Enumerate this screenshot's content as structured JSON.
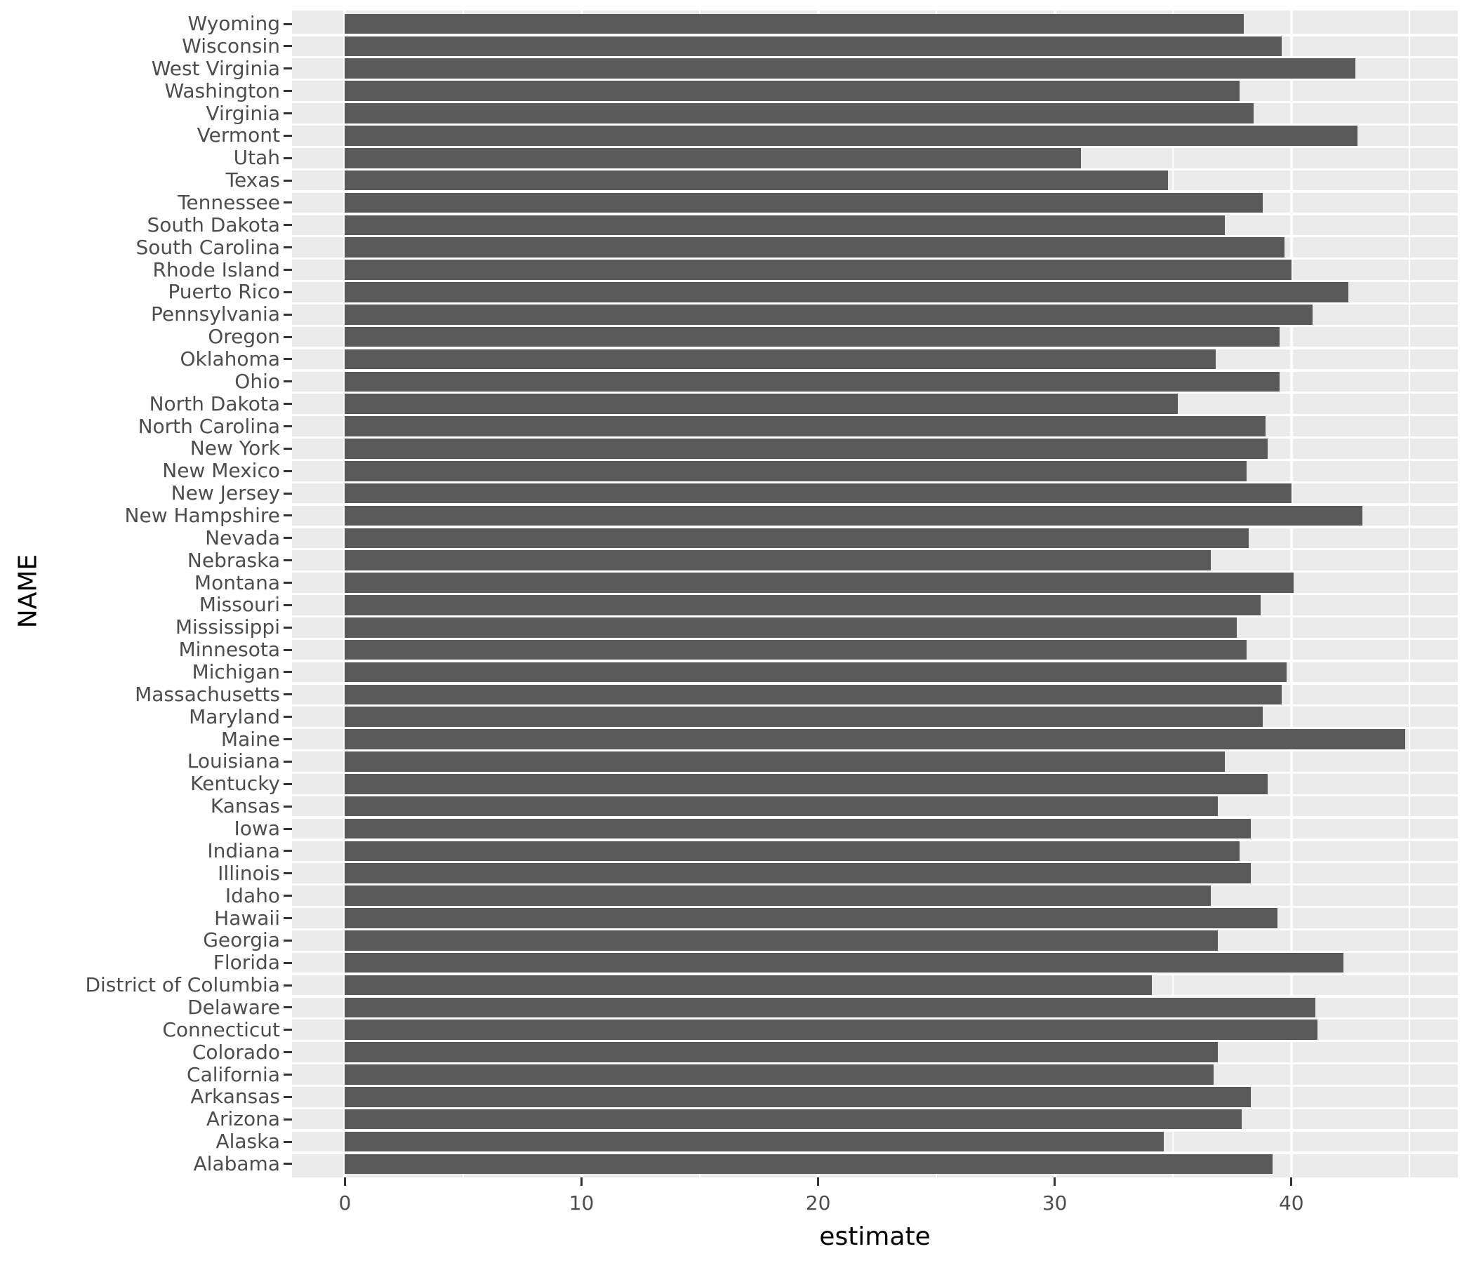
{
  "figure": {
    "background_color": "#FFFFFF"
  },
  "chart_data": {
    "type": "bar",
    "orientation": "horizontal",
    "title": "",
    "xlabel": "estimate",
    "ylabel": "NAME",
    "x_ticks": [
      "0",
      "10",
      "20",
      "30",
      "40"
    ],
    "x_tick_values": [
      0,
      10,
      20,
      30,
      40
    ],
    "x_minor_values": [
      5,
      15,
      25,
      35,
      45
    ],
    "xlim": [
      0,
      47
    ],
    "grid": "white major+minor vertical lines on grey panel stripes",
    "legend": "none",
    "bar_color": "#595959",
    "panel_color": "#EBEBEB",
    "gridline_color": "#FFFFFF",
    "tick_color": "#333333",
    "axis_text_color": "#4D4D4D",
    "axis_title_color": "#000000",
    "categories": [
      "Wyoming",
      "Wisconsin",
      "West Virginia",
      "Washington",
      "Virginia",
      "Vermont",
      "Utah",
      "Texas",
      "Tennessee",
      "South Dakota",
      "South Carolina",
      "Rhode Island",
      "Puerto Rico",
      "Pennsylvania",
      "Oregon",
      "Oklahoma",
      "Ohio",
      "North Dakota",
      "North Carolina",
      "New York",
      "New Mexico",
      "New Jersey",
      "New Hampshire",
      "Nevada",
      "Nebraska",
      "Montana",
      "Missouri",
      "Mississippi",
      "Minnesota",
      "Michigan",
      "Massachusetts",
      "Maryland",
      "Maine",
      "Louisiana",
      "Kentucky",
      "Kansas",
      "Iowa",
      "Indiana",
      "Illinois",
      "Idaho",
      "Hawaii",
      "Georgia",
      "Florida",
      "District of Columbia",
      "Delaware",
      "Connecticut",
      "Colorado",
      "California",
      "Arkansas",
      "Arizona",
      "Alaska",
      "Alabama"
    ],
    "values": [
      38.0,
      39.6,
      42.7,
      37.8,
      38.4,
      42.8,
      31.1,
      34.8,
      38.8,
      37.2,
      39.7,
      40.0,
      42.4,
      40.9,
      39.5,
      36.8,
      39.5,
      35.2,
      38.9,
      39.0,
      38.1,
      40.0,
      43.0,
      38.2,
      36.6,
      40.1,
      38.7,
      37.7,
      38.1,
      39.8,
      39.6,
      38.8,
      44.8,
      37.2,
      39.0,
      36.9,
      38.3,
      37.8,
      38.3,
      36.6,
      39.4,
      36.9,
      42.2,
      34.1,
      41.0,
      41.1,
      36.9,
      36.7,
      38.3,
      37.9,
      34.6,
      39.2
    ]
  }
}
